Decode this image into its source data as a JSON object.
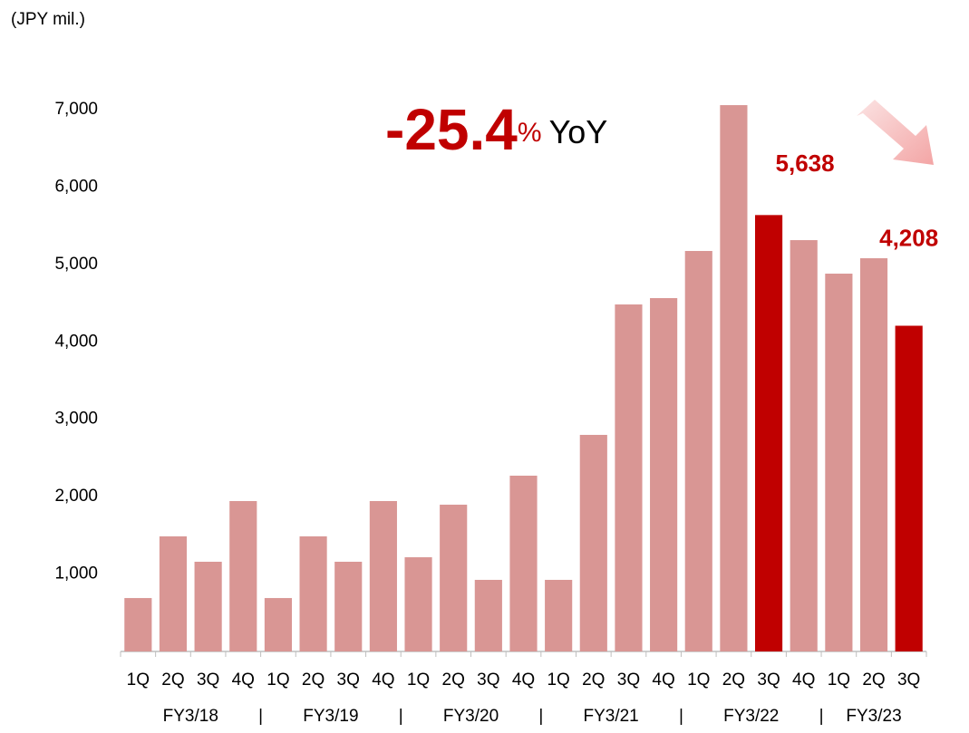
{
  "chart_data": {
    "type": "bar",
    "unit_label": "(JPY mil.)",
    "annotation": {
      "value": "-25.4",
      "unit": "%",
      "suffix": "YoY"
    },
    "categories": [
      "1Q",
      "2Q",
      "3Q",
      "4Q",
      "1Q",
      "2Q",
      "3Q",
      "4Q",
      "1Q",
      "2Q",
      "3Q",
      "4Q",
      "1Q",
      "2Q",
      "3Q",
      "4Q",
      "1Q",
      "2Q",
      "3Q",
      "4Q",
      "1Q",
      "2Q",
      "3Q"
    ],
    "groups": [
      {
        "label": "FY3/18",
        "size": 4
      },
      {
        "label": "FY3/19",
        "size": 4
      },
      {
        "label": "FY3/20",
        "size": 4
      },
      {
        "label": "FY3/21",
        "size": 4
      },
      {
        "label": "FY3/22",
        "size": 4
      },
      {
        "label": "FY3/23",
        "size": 3
      }
    ],
    "values": [
      690,
      1487,
      1159,
      1943,
      690,
      1487,
      1159,
      1943,
      1217,
      1896,
      925,
      2271,
      925,
      2798,
      4483,
      4565,
      5174,
      7058,
      5638,
      5314,
      4881,
      5080,
      4208
    ],
    "value_labels": [
      null,
      null,
      null,
      null,
      null,
      null,
      null,
      null,
      null,
      null,
      null,
      null,
      null,
      null,
      null,
      null,
      null,
      null,
      "5,638",
      null,
      null,
      null,
      "4,208"
    ],
    "colors": [
      "#d99694",
      "#d99694",
      "#d99694",
      "#d99694",
      "#d99694",
      "#d99694",
      "#d99694",
      "#d99694",
      "#d99694",
      "#d99694",
      "#d99694",
      "#d99694",
      "#d99694",
      "#d99694",
      "#d99694",
      "#d99694",
      "#d99694",
      "#d99694",
      "#c00000",
      "#d99694",
      "#d99694",
      "#d99694",
      "#c00000"
    ],
    "ylim": [
      0,
      7000
    ],
    "yticks": [
      {
        "value": 1000,
        "label": "1,000"
      },
      {
        "value": 2000,
        "label": "2,000"
      },
      {
        "value": 3000,
        "label": "3,000"
      },
      {
        "value": 4000,
        "label": "4,000"
      },
      {
        "value": 5000,
        "label": "5,000"
      },
      {
        "value": 6000,
        "label": "6,000"
      },
      {
        "value": 7000,
        "label": "7,000"
      }
    ]
  }
}
